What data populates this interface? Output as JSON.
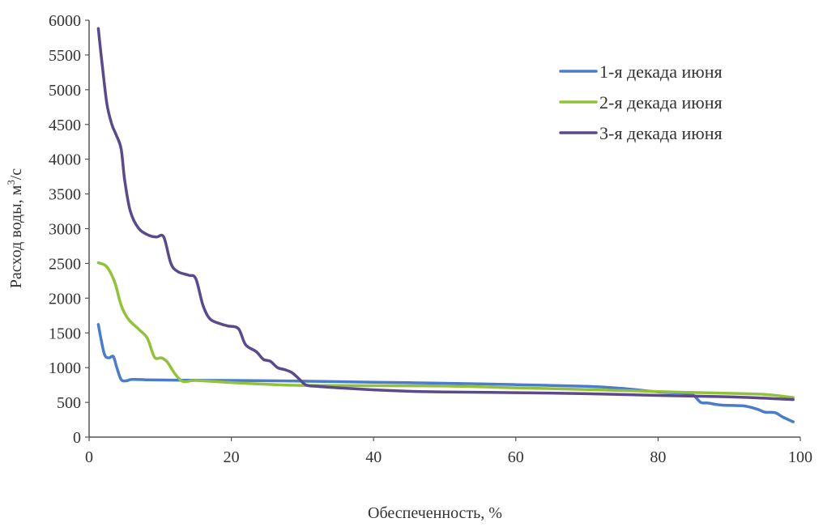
{
  "chart_data": {
    "type": "line",
    "title": "",
    "xlabel": "Обеспеченность, %",
    "ylabel_main": "Расход воды, м",
    "ylabel_sup": "3",
    "ylabel_tail": "/с",
    "xlim": [
      0,
      100
    ],
    "ylim": [
      0,
      6000
    ],
    "xticks": [
      0,
      20,
      40,
      60,
      80,
      100
    ],
    "yticks": [
      0,
      500,
      1000,
      1500,
      2000,
      2500,
      3000,
      3500,
      4000,
      4500,
      5000,
      5500,
      6000
    ],
    "grid": false,
    "legend_position": "top-right",
    "series": [
      {
        "name": "1-я декада июня",
        "color": "#4a7cc9",
        "points": [
          [
            1.3,
            1620
          ],
          [
            1.7,
            1400
          ],
          [
            2.2,
            1180
          ],
          [
            2.8,
            1140
          ],
          [
            3.4,
            1160
          ],
          [
            3.9,
            1000
          ],
          [
            4.5,
            830
          ],
          [
            5.2,
            810
          ],
          [
            6,
            830
          ],
          [
            8,
            825
          ],
          [
            12,
            820
          ],
          [
            20,
            815
          ],
          [
            30,
            805
          ],
          [
            40,
            790
          ],
          [
            50,
            775
          ],
          [
            60,
            755
          ],
          [
            70,
            730
          ],
          [
            75,
            700
          ],
          [
            80,
            650
          ],
          [
            84,
            630
          ],
          [
            85,
            600
          ],
          [
            86,
            500
          ],
          [
            87,
            490
          ],
          [
            89,
            460
          ],
          [
            92,
            450
          ],
          [
            94,
            400
          ],
          [
            95,
            360
          ],
          [
            96.5,
            350
          ],
          [
            97.5,
            290
          ],
          [
            99,
            220
          ]
        ]
      },
      {
        "name": "2-я декада июня",
        "color": "#92c13c",
        "points": [
          [
            1.3,
            2510
          ],
          [
            2.3,
            2470
          ],
          [
            3,
            2370
          ],
          [
            3.7,
            2200
          ],
          [
            4.5,
            1900
          ],
          [
            5.5,
            1700
          ],
          [
            7,
            1550
          ],
          [
            8.2,
            1420
          ],
          [
            9.2,
            1150
          ],
          [
            10.2,
            1140
          ],
          [
            11,
            1080
          ],
          [
            12,
            920
          ],
          [
            13,
            810
          ],
          [
            13.8,
            800
          ],
          [
            15,
            815
          ],
          [
            20,
            785
          ],
          [
            25,
            760
          ],
          [
            30,
            745
          ],
          [
            40,
            740
          ],
          [
            50,
            735
          ],
          [
            60,
            710
          ],
          [
            70,
            685
          ],
          [
            80,
            655
          ],
          [
            90,
            630
          ],
          [
            95,
            615
          ],
          [
            99,
            570
          ]
        ]
      },
      {
        "name": "3-я декада июня",
        "color": "#5b4a8b",
        "points": [
          [
            1.3,
            5880
          ],
          [
            1.8,
            5400
          ],
          [
            2.5,
            4800
          ],
          [
            3.2,
            4500
          ],
          [
            3.8,
            4350
          ],
          [
            4.5,
            4150
          ],
          [
            5,
            3700
          ],
          [
            5.8,
            3250
          ],
          [
            7,
            3000
          ],
          [
            8.5,
            2900
          ],
          [
            9.5,
            2880
          ],
          [
            10.5,
            2880
          ],
          [
            11.5,
            2500
          ],
          [
            12.5,
            2380
          ],
          [
            14,
            2330
          ],
          [
            15,
            2280
          ],
          [
            16,
            1900
          ],
          [
            17,
            1700
          ],
          [
            18.5,
            1630
          ],
          [
            19.5,
            1600
          ],
          [
            21,
            1560
          ],
          [
            22,
            1330
          ],
          [
            23.5,
            1230
          ],
          [
            24.5,
            1120
          ],
          [
            25.5,
            1090
          ],
          [
            26.5,
            1000
          ],
          [
            27.5,
            970
          ],
          [
            28.5,
            930
          ],
          [
            29.5,
            840
          ],
          [
            30.5,
            750
          ],
          [
            32,
            730
          ],
          [
            35,
            710
          ],
          [
            40,
            680
          ],
          [
            45,
            660
          ],
          [
            50,
            650
          ],
          [
            60,
            640
          ],
          [
            70,
            625
          ],
          [
            80,
            600
          ],
          [
            90,
            580
          ],
          [
            95,
            560
          ],
          [
            99,
            540
          ]
        ]
      }
    ]
  }
}
